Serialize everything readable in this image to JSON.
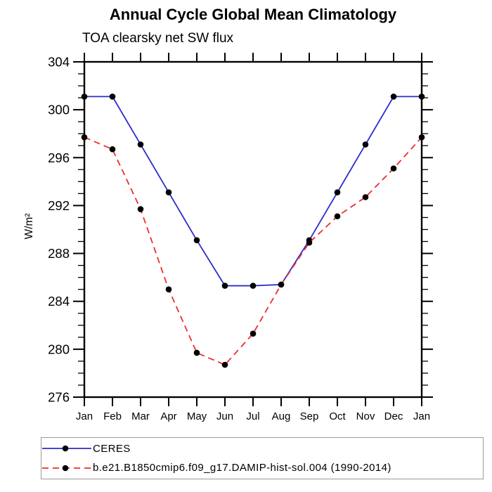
{
  "chart_data": {
    "type": "line",
    "title": "Annual Cycle Global Mean Climatology",
    "subtitle": "TOA clearsky net SW flux",
    "ylabel": "W/m²",
    "x_categories": [
      "Jan",
      "Feb",
      "Mar",
      "Apr",
      "May",
      "Jun",
      "Jul",
      "Aug",
      "Sep",
      "Oct",
      "Nov",
      "Dec",
      "Jan"
    ],
    "ylim": [
      276,
      304
    ],
    "ytick_major_step": 4,
    "ytick_minor_step": 1,
    "ytick_labels": [
      "304",
      "300",
      "296",
      "292",
      "288",
      "284",
      "280",
      "276"
    ],
    "grid": false,
    "legend_position": "bottom-left-box",
    "marker": {
      "shape": "circle",
      "color": "#000000"
    },
    "axis_color": "#000000",
    "series": [
      {
        "name": "CERES",
        "color": "#2b2bcc",
        "style": "solid",
        "values": [
          301.1,
          301.1,
          297.1,
          293.1,
          289.1,
          285.3,
          285.3,
          285.4,
          289.1,
          293.1,
          297.1,
          301.1,
          301.1
        ]
      },
      {
        "name": "b.e21.B1850cmip6.f09_g17.DAMIP-hist-sol.004 (1990-2014)",
        "color": "#ee2c2c",
        "style": "dashed",
        "values": [
          297.7,
          296.7,
          291.7,
          285.0,
          279.7,
          278.7,
          281.3,
          285.4,
          288.9,
          291.1,
          292.7,
          295.1,
          297.7
        ]
      }
    ]
  }
}
